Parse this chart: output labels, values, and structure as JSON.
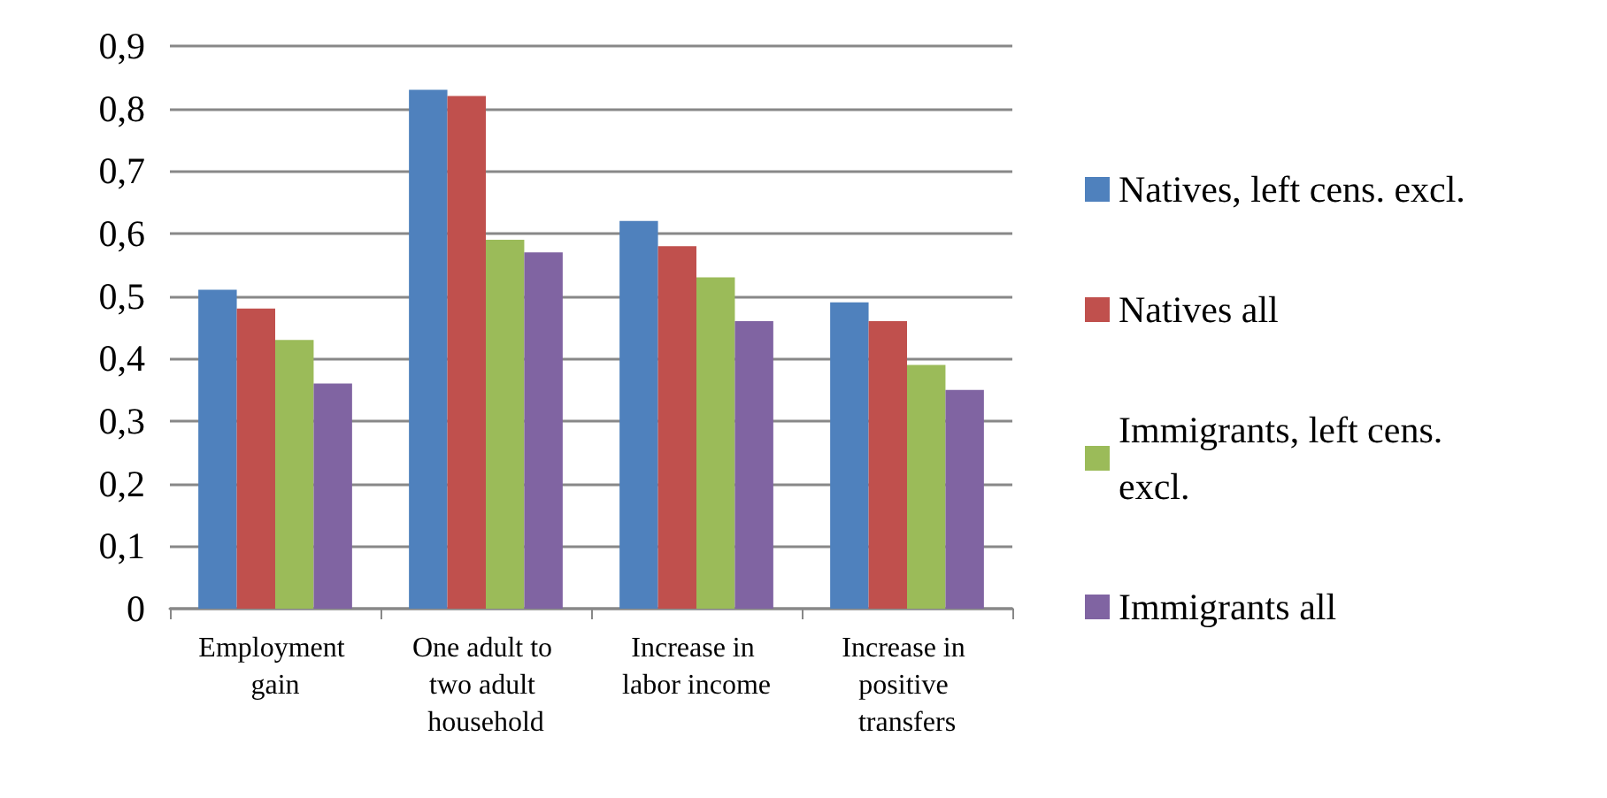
{
  "chart_data": {
    "type": "bar",
    "categories": [
      "Employment gain",
      "One adult to two adult household",
      "Increase in labor income",
      "Increase in positive transfers"
    ],
    "series": [
      {
        "name": "Natives, left cens. excl.",
        "color": "#4f81bd",
        "values": [
          0.51,
          0.83,
          0.62,
          0.49
        ]
      },
      {
        "name": "Natives all",
        "color": "#c0504d",
        "values": [
          0.48,
          0.82,
          0.58,
          0.46
        ]
      },
      {
        "name": "Immigrants, left cens. excl.",
        "color": "#9bbb59",
        "values": [
          0.43,
          0.59,
          0.53,
          0.39
        ]
      },
      {
        "name": "Immigrants all",
        "color": "#8064a2",
        "values": [
          0.36,
          0.57,
          0.46,
          0.35
        ]
      }
    ],
    "ylim": [
      0,
      0.9
    ],
    "yticks": [
      {
        "value": 0,
        "label": "0"
      },
      {
        "value": 0.1,
        "label": "0,1"
      },
      {
        "value": 0.2,
        "label": "0,2"
      },
      {
        "value": 0.3,
        "label": "0,3"
      },
      {
        "value": 0.4,
        "label": "0,4"
      },
      {
        "value": 0.5,
        "label": "0,5"
      },
      {
        "value": 0.6,
        "label": "0,6"
      },
      {
        "value": 0.7,
        "label": "0,7"
      },
      {
        "value": 0.8,
        "label": "0,8"
      },
      {
        "value": 0.9,
        "label": "0,9"
      }
    ],
    "grid": "y",
    "legend": "right"
  }
}
